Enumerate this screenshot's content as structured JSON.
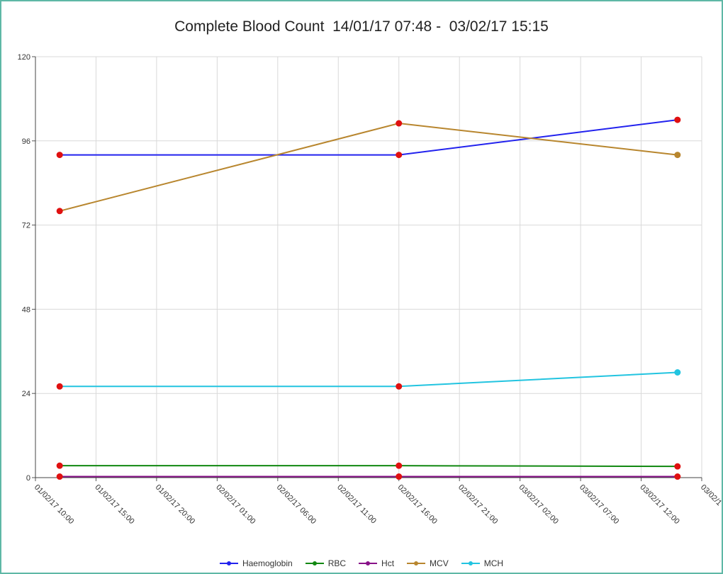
{
  "chart_data": {
    "type": "line",
    "title": "Complete Blood Count  14/01/17 07:48 -  03/02/17 15:15",
    "xlabel": "",
    "ylabel": "",
    "ylim": [
      0,
      120
    ],
    "yticks": [
      "0",
      "24",
      "48",
      "72",
      "96",
      "120"
    ],
    "xlim": [
      "01/02/17 10:00",
      "03/02/17 17:00"
    ],
    "xticks": [
      "01/02/17 10:00",
      "01/02/17 15:00",
      "01/02/17 20:00",
      "02/02/17 01:00",
      "02/02/17 06:00",
      "02/02/17 11:00",
      "02/02/17 16:00",
      "02/02/17 21:00",
      "03/02/17 02:00",
      "03/02/17 07:00",
      "03/02/17 12:00",
      "03/02/1"
    ],
    "x": [
      "01/02/17 12:00",
      "02/02/17 16:00",
      "03/02/17 15:00"
    ],
    "grid": true,
    "legend_position": "bottom",
    "series": [
      {
        "name": "Haemoglobin",
        "color": "#2222ee",
        "values": [
          92,
          92,
          102
        ]
      },
      {
        "name": "RBC",
        "color": "#118811",
        "values": [
          3.4,
          3.4,
          3.2
        ]
      },
      {
        "name": "Hct",
        "color": "#881188",
        "values": [
          0.3,
          0.3,
          0.3
        ]
      },
      {
        "name": "MCV",
        "color": "#b8862e",
        "values": [
          76,
          101,
          92
        ]
      },
      {
        "name": "MCH",
        "color": "#22c4e0",
        "values": [
          26,
          26,
          30
        ]
      }
    ],
    "abnormal_marker_color": "#e01010",
    "abnormal_markers": [
      {
        "series": "Haemoglobin",
        "points": [
          0,
          1,
          2
        ]
      },
      {
        "series": "RBC",
        "points": [
          0,
          1,
          2
        ]
      },
      {
        "series": "Hct",
        "points": [
          0,
          1,
          2
        ]
      },
      {
        "series": "MCV",
        "points": [
          0,
          1
        ]
      },
      {
        "series": "MCH",
        "points": [
          0,
          1
        ]
      }
    ]
  }
}
